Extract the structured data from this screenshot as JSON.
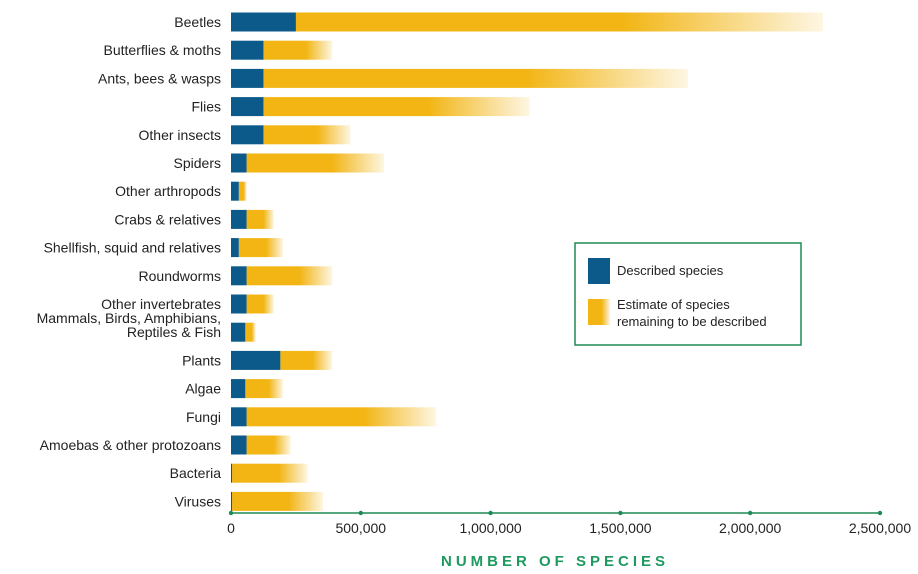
{
  "chart_data": {
    "type": "bar",
    "orientation": "horizontal",
    "stacked": true,
    "categories": [
      "Beetles",
      "Butterflies & moths",
      "Ants, bees & wasps",
      "Flies",
      "Other insects",
      "Spiders",
      "Other arthropods",
      "Crabs & relatives",
      "Shellfish, squid and relatives",
      "Roundworms",
      "Other invertebrates",
      "Mammals, Birds, Amphibians, Reptiles & Fish",
      "Plants",
      "Algae",
      "Fungi",
      "Amoebas & other protozoans",
      "Bacteria",
      "Viruses"
    ],
    "series": [
      {
        "name": "Described species",
        "values": [
          250000,
          125000,
          125000,
          125000,
          125000,
          60000,
          30000,
          60000,
          30000,
          60000,
          60000,
          55000,
          190000,
          55000,
          60000,
          60000,
          4000,
          4000
        ]
      },
      {
        "name": "Estimate of species remaining to be described",
        "values": [
          2030000,
          265000,
          1635000,
          1025000,
          335000,
          530000,
          30000,
          105000,
          170000,
          330000,
          105000,
          40000,
          200000,
          145000,
          730000,
          170000,
          291000,
          351000
        ]
      }
    ],
    "xlabel": "NUMBER OF SPECIES",
    "ylabel": "",
    "title": "",
    "xlim": [
      0,
      2500000
    ],
    "xticks": [
      0,
      500000,
      1000000,
      1500000,
      2000000,
      2500000
    ],
    "xtick_labels": [
      "0",
      "500,000",
      "1,000,000",
      "1,500,000",
      "2,000,000",
      "2,500,000"
    ],
    "grid": false,
    "legend": {
      "position": "center-right",
      "entries": [
        "Described species",
        "Estimate of species remaining to be described"
      ],
      "lines": [
        [
          "Described species"
        ],
        [
          "Estimate of species",
          "remaining to be described"
        ]
      ]
    },
    "colors": {
      "described": "#0b5a8a",
      "estimate": "#f2b514",
      "axis": "#1e8a55",
      "axis_title": "#1e9a60",
      "legend_border": "#1e8a55"
    }
  }
}
